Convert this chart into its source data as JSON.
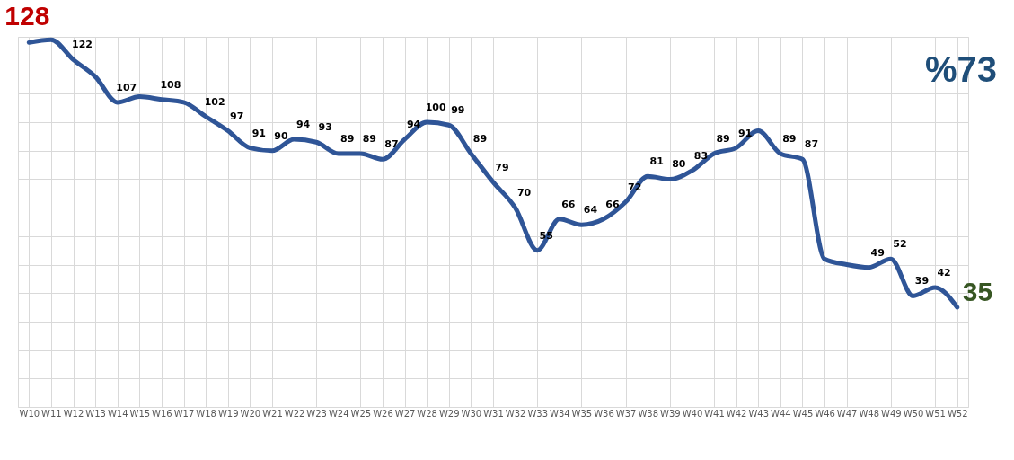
{
  "chart_data": {
    "type": "line",
    "categories": [
      "W10",
      "W11",
      "W12",
      "W13",
      "W14",
      "W15",
      "W16",
      "W17",
      "W18",
      "W19",
      "W20",
      "W21",
      "W22",
      "W23",
      "W24",
      "W25",
      "W26",
      "W27",
      "W28",
      "W29",
      "W30",
      "W31",
      "W32",
      "W33",
      "W34",
      "W35",
      "W36",
      "W37",
      "W38",
      "W39",
      "W40",
      "W41",
      "W42",
      "W43",
      "W44",
      "W45",
      "W46",
      "W47",
      "W48",
      "W49",
      "W50",
      "W51",
      "W52"
    ],
    "series": [
      {
        "color": "#2f5597",
        "values": [
          128,
          129,
          122,
          116,
          107,
          109,
          108,
          107,
          102,
          97,
          91,
          90,
          94,
          93,
          89,
          89,
          87,
          94,
          100,
          99,
          89,
          79,
          70,
          55,
          66,
          64,
          66,
          72,
          81,
          80,
          83,
          89,
          91,
          97,
          89,
          87,
          52,
          50,
          49,
          52,
          39,
          42,
          35
        ],
        "value_labels": [
          "128",
          null,
          "122",
          null,
          "107",
          null,
          "108",
          null,
          "102",
          "97",
          "91",
          "90",
          "94",
          "93",
          "89",
          "89",
          "87",
          "94",
          "100",
          "99",
          "89",
          "79",
          "70",
          "55",
          "66",
          "64",
          "66",
          "72",
          "81",
          "80",
          "83",
          "89",
          "91",
          null,
          "89",
          "87",
          null,
          null,
          "49",
          "52",
          "39",
          "42",
          "35"
        ]
      }
    ],
    "tick_labels": "x",
    "grid": true,
    "line_style": "solid",
    "marker": "none",
    "legend": false,
    "annotations": [
      "%73"
    ]
  }
}
